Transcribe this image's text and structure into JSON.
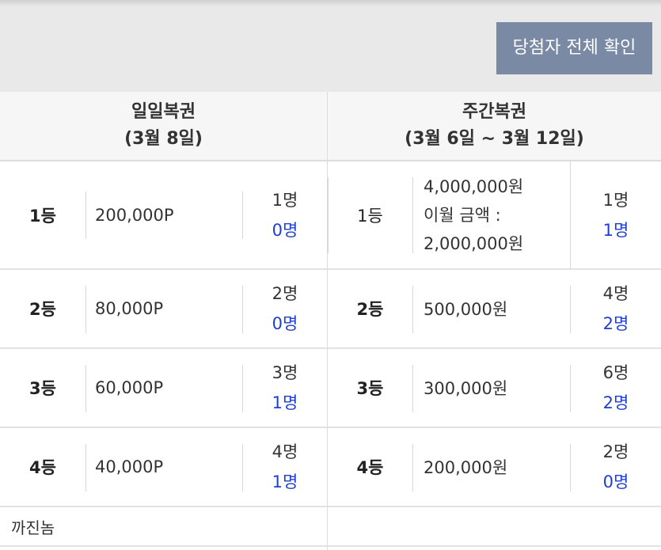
{
  "header": {
    "winners_button_label": "당첨자 전체 확인"
  },
  "daily": {
    "title": "일일복권",
    "period": "(3월 8일)",
    "rows": [
      {
        "rank": "1등",
        "prize": "200,000P",
        "total": "1명",
        "won": "0명"
      },
      {
        "rank": "2등",
        "prize": "80,000P",
        "total": "2명",
        "won": "0명"
      },
      {
        "rank": "3등",
        "prize": "60,000P",
        "total": "3명",
        "won": "1명"
      },
      {
        "rank": "4등",
        "prize": "40,000P",
        "total": "4명",
        "won": "1명"
      }
    ],
    "extra_row_label": "까진놈"
  },
  "weekly": {
    "title": "주간복권",
    "period": "(3월 6일 ~ 3월 12일)",
    "rows": [
      {
        "rank": "1등",
        "prize_lines": [
          "4,000,000원",
          "이월 금액 :",
          "2,000,000원"
        ],
        "total": "1명",
        "won": "1명"
      },
      {
        "rank": "2등",
        "prize": "500,000원",
        "total": "4명",
        "won": "2명"
      },
      {
        "rank": "3등",
        "prize": "300,000원",
        "total": "6명",
        "won": "2명"
      },
      {
        "rank": "4등",
        "prize": "200,000원",
        "total": "2명",
        "won": "0명"
      }
    ]
  },
  "colors": {
    "button_bg": "#7a8aa5",
    "won_count": "#1f3fd0"
  }
}
